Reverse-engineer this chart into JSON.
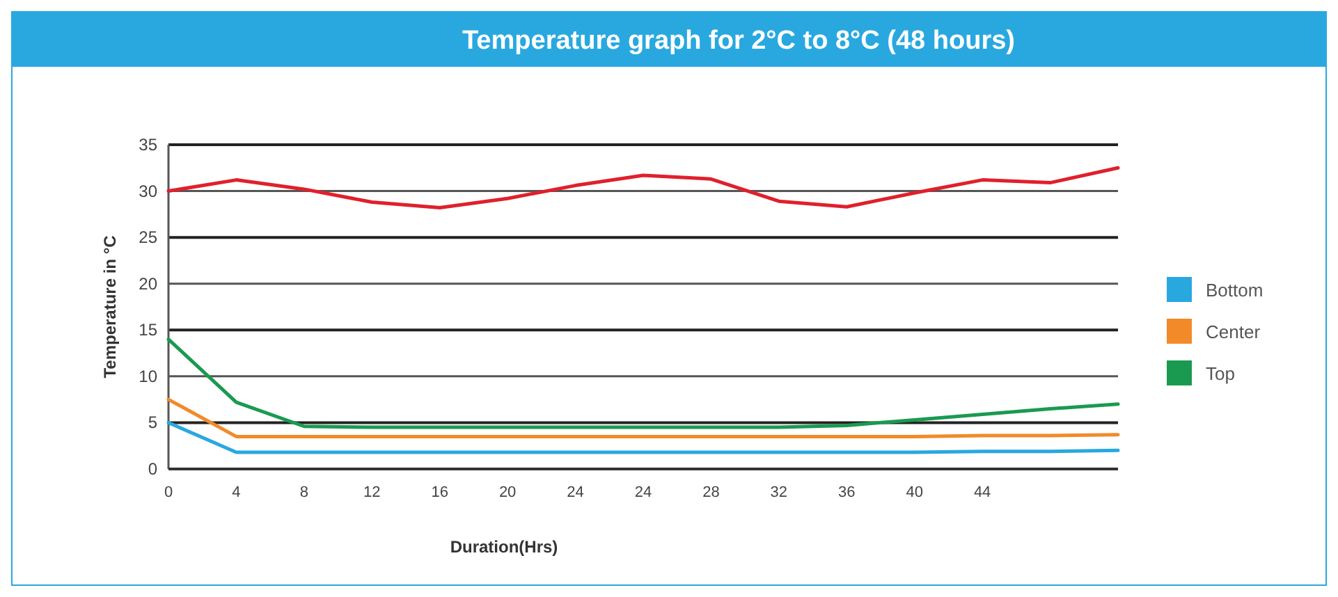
{
  "chart_data": {
    "type": "line",
    "title": "Temperature graph for 2°C to 8°C (48 hours)",
    "xlabel": "Duration(Hrs)",
    "ylabel": "Temperature in °C",
    "categories": [
      "0",
      "4",
      "8",
      "12",
      "16",
      "20",
      "24",
      "24",
      "28",
      "32",
      "36",
      "40",
      "44",
      null,
      null
    ],
    "series": [
      {
        "color": "#e0202c",
        "values": [
          30,
          31.2,
          30.2,
          28.8,
          28.2,
          29.2,
          30.6,
          31.7,
          31.3,
          28.9,
          28.3,
          29.8,
          31.2,
          30.9,
          32.5
        ]
      },
      {
        "name": "Bottom",
        "color": "#29a8e0",
        "values": [
          5,
          1.8,
          1.8,
          1.8,
          1.8,
          1.8,
          1.8,
          1.8,
          1.8,
          1.8,
          1.8,
          1.8,
          1.9,
          1.9,
          2
        ]
      },
      {
        "name": "Center",
        "color": "#f28a2a",
        "values": [
          7.5,
          3.5,
          3.5,
          3.5,
          3.5,
          3.5,
          3.5,
          3.5,
          3.5,
          3.5,
          3.5,
          3.5,
          3.6,
          3.6,
          3.7
        ]
      },
      {
        "name": "Top",
        "color": "#1a9a50",
        "values": [
          14,
          7.2,
          4.6,
          4.5,
          4.5,
          4.5,
          4.5,
          4.5,
          4.5,
          4.5,
          4.7,
          5.3,
          5.9,
          6.5,
          7
        ]
      }
    ],
    "ylim": [
      0,
      35
    ],
    "yticks": [
      0,
      5,
      10,
      15,
      20,
      25,
      30,
      35
    ],
    "grid": "y",
    "legend": "right",
    "marker": "none",
    "line_style": "solid"
  }
}
